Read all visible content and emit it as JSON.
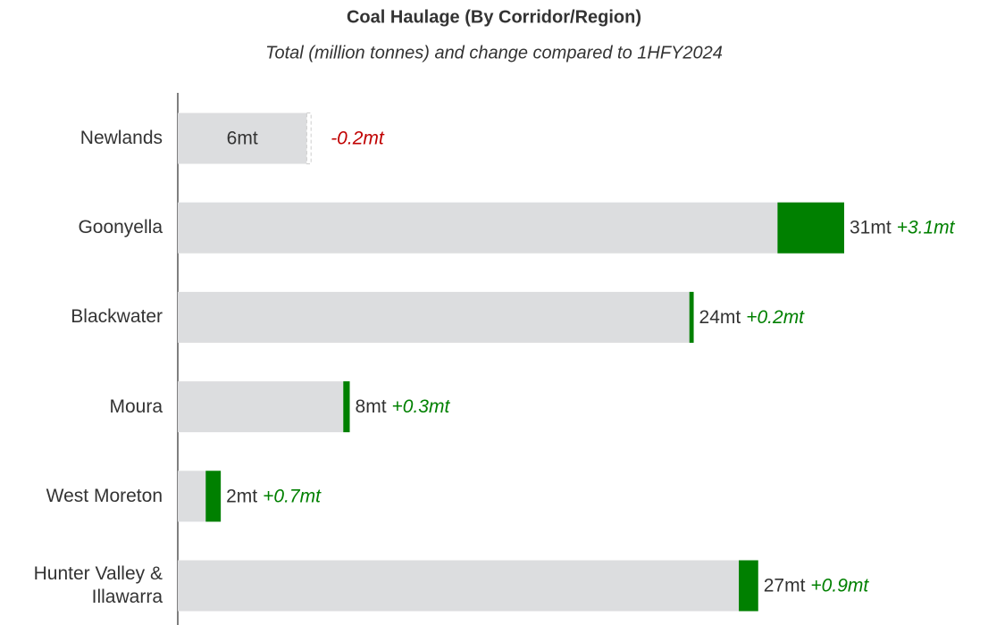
{
  "chart_data": {
    "type": "bar-change",
    "title": "Coal Haulage (By Corridor/Region)",
    "subtitle": "Total (million tonnes) and change compared to 1HFY2024",
    "categories": [
      "Newlands",
      "Goonyella",
      "Blackwater",
      "Moura",
      "West Moreton",
      "Hunter Valley & Illawarra"
    ],
    "values": [
      6,
      31,
      24,
      8,
      2,
      27
    ],
    "value_labels": [
      "6mt",
      "31mt",
      "24mt",
      "8mt",
      "2mt",
      "27mt"
    ],
    "changes": [
      -0.2,
      3.1,
      0.2,
      0.3,
      0.7,
      0.9
    ],
    "change_labels": [
      "-0.2mt",
      "+3.1mt",
      "+0.2mt",
      "+0.3mt",
      "+0.7mt",
      "+0.9mt"
    ],
    "color": "#dcdddf",
    "increase_color": "#008000",
    "decrease_color": "#c00000"
  }
}
